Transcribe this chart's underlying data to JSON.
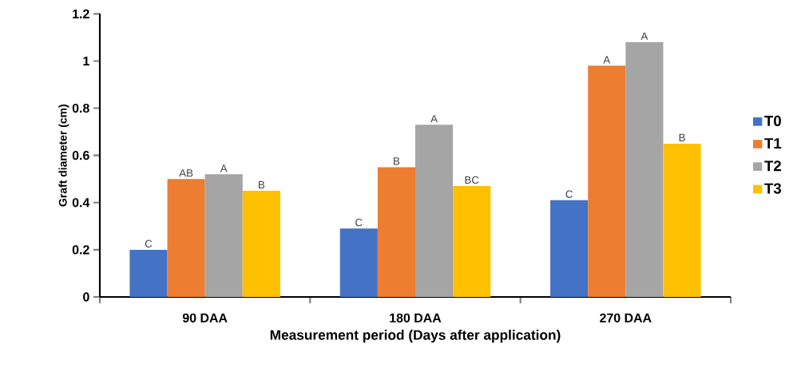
{
  "chart_data": {
    "type": "bar",
    "xlabel": "Measurement period (Days after application)",
    "ylabel": "Graft diameter (cm)",
    "categories": [
      "90 DAA",
      "180 DAA",
      "270 DAA"
    ],
    "series": [
      {
        "name": "T0",
        "color": "#4472c4",
        "values": [
          0.2,
          0.29,
          0.41
        ],
        "value_labels": [
          "C",
          "C",
          "C"
        ]
      },
      {
        "name": "T1",
        "color": "#ed7d31",
        "values": [
          0.5,
          0.55,
          0.98
        ],
        "value_labels": [
          "AB",
          "B",
          "A"
        ]
      },
      {
        "name": "T2",
        "color": "#a5a5a5",
        "values": [
          0.52,
          0.73,
          1.08
        ],
        "value_labels": [
          "A",
          "A",
          "A"
        ]
      },
      {
        "name": "T3",
        "color": "#ffc000",
        "values": [
          0.45,
          0.47,
          0.65
        ],
        "value_labels": [
          "B",
          "BC",
          "B"
        ]
      }
    ],
    "ylim": [
      0,
      1.2
    ],
    "yticks": [
      0,
      0.2,
      0.4,
      0.6,
      0.8,
      1,
      1.2
    ],
    "grid": false,
    "legend": "right"
  }
}
